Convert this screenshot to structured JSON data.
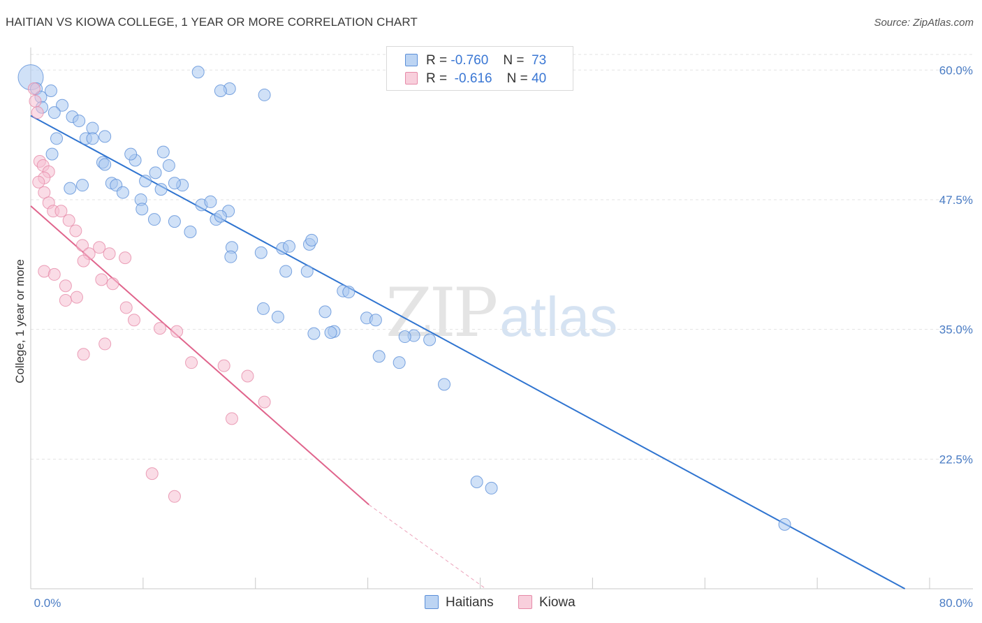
{
  "title": "HAITIAN VS KIOWA COLLEGE, 1 YEAR OR MORE CORRELATION CHART",
  "source": "Source: ZipAtlas.com",
  "watermark": {
    "zip": "ZIP",
    "atlas": "atlas"
  },
  "colors": {
    "haitians_fill": "#a9c8f0",
    "haitians_stroke": "#5b8fd8",
    "haitians_line": "#2f74d0",
    "kiowa_fill": "#f6bfd1",
    "kiowa_stroke": "#e68aa8",
    "kiowa_line": "#e0648c",
    "grid": "#e3e3e3"
  },
  "legend": {
    "rows": [
      {
        "r_label": "R =",
        "r_value": "-0.760",
        "n_label": "N =",
        "n_value": "73"
      },
      {
        "r_label": "R =",
        "r_value": "-0.616",
        "n_label": "N =",
        "n_value": "40"
      }
    ]
  },
  "bottom_legend": [
    "Haitians",
    "Kiowa"
  ],
  "chart_data": {
    "type": "scatter",
    "title": "HAITIAN VS KIOWA COLLEGE, 1 YEAR OR MORE CORRELATION CHART",
    "xlabel": "",
    "ylabel": "College, 1 year or more",
    "xlim": [
      0,
      80
    ],
    "ylim": [
      10.0,
      61.5
    ],
    "x_tick_labels": [
      "0.0%",
      "80.0%"
    ],
    "y_ticks": [
      22.5,
      35.0,
      47.5,
      60.0
    ],
    "y_tick_labels": [
      "22.5%",
      "35.0%",
      "47.5%",
      "60.0%"
    ],
    "grid": true,
    "series": [
      {
        "name": "Haitians",
        "points": [
          [
            0.0,
            59.3
          ],
          [
            0.5,
            58.2
          ],
          [
            0.9,
            57.4
          ],
          [
            1.0,
            56.4
          ],
          [
            1.8,
            58.0
          ],
          [
            2.8,
            56.6
          ],
          [
            2.1,
            55.9
          ],
          [
            3.7,
            55.5
          ],
          [
            4.3,
            55.1
          ],
          [
            5.5,
            54.4
          ],
          [
            6.6,
            53.6
          ],
          [
            2.3,
            53.4
          ],
          [
            4.9,
            53.4
          ],
          [
            5.5,
            53.4
          ],
          [
            1.9,
            51.9
          ],
          [
            6.4,
            51.1
          ],
          [
            9.3,
            51.3
          ],
          [
            8.9,
            51.9
          ],
          [
            11.8,
            52.1
          ],
          [
            3.5,
            48.6
          ],
          [
            7.2,
            49.1
          ],
          [
            7.6,
            48.9
          ],
          [
            10.2,
            49.3
          ],
          [
            4.6,
            48.9
          ],
          [
            8.2,
            48.2
          ],
          [
            6.6,
            50.9
          ],
          [
            12.3,
            50.8
          ],
          [
            11.1,
            50.1
          ],
          [
            11.6,
            48.5
          ],
          [
            13.5,
            48.9
          ],
          [
            12.8,
            49.1
          ],
          [
            9.8,
            47.5
          ],
          [
            9.9,
            46.6
          ],
          [
            15.2,
            47.0
          ],
          [
            16.0,
            47.3
          ],
          [
            17.6,
            46.4
          ],
          [
            16.5,
            45.6
          ],
          [
            16.9,
            45.9
          ],
          [
            11.0,
            45.6
          ],
          [
            12.8,
            45.4
          ],
          [
            14.2,
            44.4
          ],
          [
            17.9,
            42.9
          ],
          [
            17.8,
            42.0
          ],
          [
            20.5,
            42.4
          ],
          [
            22.4,
            42.8
          ],
          [
            23.0,
            43.0
          ],
          [
            24.8,
            43.2
          ],
          [
            25.0,
            43.6
          ],
          [
            22.7,
            40.6
          ],
          [
            24.6,
            40.6
          ],
          [
            27.8,
            38.7
          ],
          [
            28.3,
            38.6
          ],
          [
            26.2,
            36.7
          ],
          [
            20.7,
            37.0
          ],
          [
            22.0,
            36.2
          ],
          [
            29.9,
            36.1
          ],
          [
            30.7,
            35.9
          ],
          [
            25.2,
            34.6
          ],
          [
            27.0,
            34.8
          ],
          [
            34.1,
            34.4
          ],
          [
            35.5,
            34.0
          ],
          [
            33.3,
            34.3
          ],
          [
            14.9,
            59.8
          ],
          [
            17.7,
            58.2
          ],
          [
            16.9,
            58.0
          ],
          [
            20.8,
            57.6
          ],
          [
            26.7,
            34.7
          ],
          [
            31.0,
            32.4
          ],
          [
            32.8,
            31.8
          ],
          [
            36.8,
            29.7
          ],
          [
            39.7,
            20.3
          ],
          [
            41.0,
            19.7
          ],
          [
            67.1,
            16.2
          ]
        ]
      },
      {
        "name": "Kiowa",
        "points": [
          [
            0.3,
            58.2
          ],
          [
            0.4,
            57.0
          ],
          [
            0.6,
            55.9
          ],
          [
            0.8,
            51.2
          ],
          [
            1.1,
            50.8
          ],
          [
            1.6,
            50.2
          ],
          [
            1.2,
            49.6
          ],
          [
            0.7,
            49.2
          ],
          [
            1.2,
            48.2
          ],
          [
            1.6,
            47.2
          ],
          [
            2.0,
            46.4
          ],
          [
            2.7,
            46.4
          ],
          [
            3.4,
            45.5
          ],
          [
            4.0,
            44.5
          ],
          [
            4.6,
            43.1
          ],
          [
            5.2,
            42.3
          ],
          [
            4.7,
            41.6
          ],
          [
            1.2,
            40.6
          ],
          [
            2.1,
            40.3
          ],
          [
            3.1,
            39.2
          ],
          [
            4.1,
            38.1
          ],
          [
            3.1,
            37.8
          ],
          [
            7.3,
            39.4
          ],
          [
            6.1,
            42.9
          ],
          [
            7.0,
            42.3
          ],
          [
            8.4,
            41.9
          ],
          [
            6.3,
            39.8
          ],
          [
            8.5,
            37.1
          ],
          [
            9.2,
            35.9
          ],
          [
            11.5,
            35.1
          ],
          [
            13.0,
            34.8
          ],
          [
            6.6,
            33.6
          ],
          [
            4.7,
            32.6
          ],
          [
            14.3,
            31.8
          ],
          [
            17.2,
            31.5
          ],
          [
            19.3,
            30.5
          ],
          [
            20.8,
            28.0
          ],
          [
            17.9,
            26.4
          ],
          [
            10.8,
            21.1
          ],
          [
            12.8,
            18.9
          ]
        ]
      }
    ],
    "trend_lines": [
      {
        "series": "Haitians",
        "start": [
          0.0,
          55.6
        ],
        "end": [
          77.8,
          10.0
        ],
        "style": "solid"
      },
      {
        "series": "Kiowa",
        "start": [
          0.0,
          46.9
        ],
        "end": [
          30.1,
          18.1
        ],
        "style": "solid"
      },
      {
        "series": "Kiowa",
        "start": [
          30.1,
          18.1
        ],
        "end": [
          40.5,
          10.0
        ],
        "style": "dashed"
      }
    ]
  }
}
